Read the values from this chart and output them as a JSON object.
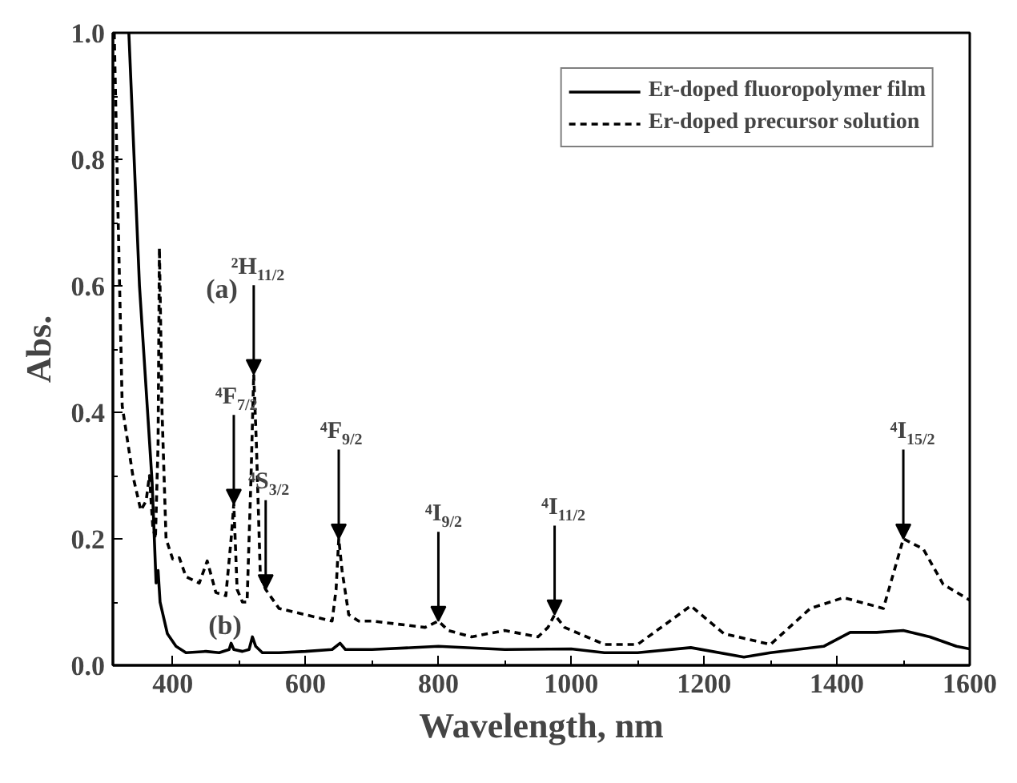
{
  "chart_data": {
    "type": "line",
    "xlabel": "Wavelength, nm",
    "ylabel": "Abs.",
    "xlim": [
      310,
      1600
    ],
    "ylim": [
      0,
      1.0
    ],
    "xticks": [
      400,
      600,
      800,
      1000,
      1200,
      1400,
      1600
    ],
    "yticks": [
      {
        "value": 0,
        "label": "0.0"
      },
      {
        "value": 0.2,
        "label": "0.2"
      },
      {
        "value": 0.4,
        "label": "0.4"
      },
      {
        "value": 0.6,
        "label": "0.6"
      },
      {
        "value": 0.8,
        "label": "0.8"
      },
      {
        "value": 1.0,
        "label": "1.0"
      }
    ],
    "grid": false,
    "legend": "top right",
    "series": [
      {
        "name": "Er-doped fluoropolymer film",
        "color": "#000000",
        "line_style": "solid",
        "x": [
          334,
          350,
          369,
          375,
          378,
          381,
          392,
          405,
          420,
          450,
          470,
          485,
          488,
          492,
          505,
          515,
          520,
          525,
          535,
          560,
          600,
          640,
          652,
          660,
          700,
          800,
          900,
          1000,
          1050,
          1100,
          1180,
          1260,
          1300,
          1380,
          1420,
          1460,
          1500,
          1540,
          1580,
          1600
        ],
        "values": [
          1.0,
          0.6,
          0.29,
          0.13,
          0.15,
          0.1,
          0.05,
          0.03,
          0.02,
          0.022,
          0.02,
          0.025,
          0.035,
          0.025,
          0.022,
          0.025,
          0.045,
          0.03,
          0.02,
          0.02,
          0.022,
          0.025,
          0.035,
          0.025,
          0.025,
          0.03,
          0.025,
          0.026,
          0.02,
          0.02,
          0.028,
          0.013,
          0.02,
          0.03,
          0.052,
          0.052,
          0.055,
          0.045,
          0.03,
          0.026
        ]
      },
      {
        "name": "Er-doped precursor solution",
        "color": "#000000",
        "line_style": "dashed",
        "x": [
          312,
          318,
          324,
          340,
          352,
          360,
          365,
          370,
          374,
          378,
          380,
          384,
          390,
          400,
          410,
          420,
          440,
          452,
          465,
          480,
          488,
          492,
          497,
          505,
          512,
          518,
          522,
          526,
          532,
          540,
          560,
          600,
          640,
          646,
          650,
          655,
          665,
          680,
          700,
          780,
          800,
          815,
          850,
          900,
          950,
          965,
          975,
          990,
          1050,
          1100,
          1180,
          1230,
          1300,
          1360,
          1410,
          1470,
          1500,
          1530,
          1560,
          1600
        ],
        "values": [
          1.0,
          0.7,
          0.41,
          0.3,
          0.245,
          0.26,
          0.3,
          0.22,
          0.2,
          0.35,
          0.66,
          0.4,
          0.2,
          0.168,
          0.17,
          0.14,
          0.13,
          0.165,
          0.115,
          0.11,
          0.2,
          0.255,
          0.12,
          0.1,
          0.1,
          0.3,
          0.46,
          0.35,
          0.14,
          0.12,
          0.09,
          0.08,
          0.07,
          0.12,
          0.2,
          0.15,
          0.08,
          0.07,
          0.07,
          0.06,
          0.07,
          0.055,
          0.045,
          0.055,
          0.045,
          0.06,
          0.08,
          0.06,
          0.033,
          0.033,
          0.094,
          0.05,
          0.033,
          0.09,
          0.107,
          0.09,
          0.2,
          0.184,
          0.128,
          0.103
        ]
      }
    ],
    "annotations": [
      "(a)",
      "(b)",
      {
        "text": "⁴F$_{7/2}$",
        "x": 492,
        "y": 0.255
      },
      {
        "text": "²H$_{11/2}$",
        "x": 522,
        "y": 0.46
      },
      {
        "text": "⁴S$_{3/2}$",
        "x": 540,
        "y": 0.12
      },
      {
        "text": "⁴F$_{9/2}$",
        "x": 650,
        "y": 0.2
      },
      {
        "text": "⁴I$_{9/2}$",
        "x": 800,
        "y": 0.07
      },
      {
        "text": "⁴I$_{11/2}$",
        "x": 975,
        "y": 0.08
      },
      {
        "text": "⁴I$_{15/2}$",
        "x": 1500,
        "y": 0.2
      }
    ]
  }
}
